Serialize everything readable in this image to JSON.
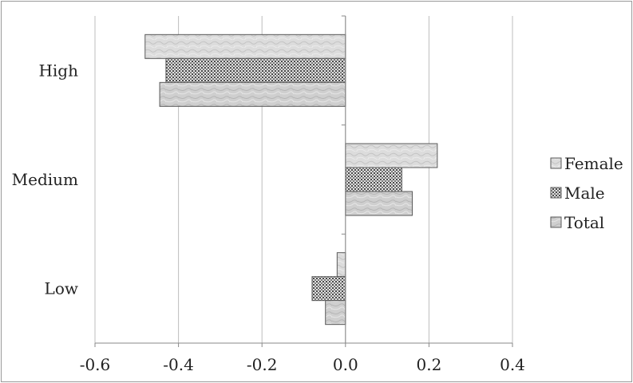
{
  "chart_data": {
    "type": "bar",
    "orientation": "horizontal",
    "title": "",
    "xlabel": "",
    "ylabel": "",
    "categories": [
      "High",
      "Medium",
      "Low"
    ],
    "series": [
      {
        "name": "Female",
        "values": [
          -0.48,
          0.22,
          -0.02
        ],
        "color": "#d6d6d6",
        "pattern": "marble-light"
      },
      {
        "name": "Male",
        "values": [
          -0.43,
          0.135,
          -0.08
        ],
        "color": "#8e8e8e",
        "pattern": "crosshatch"
      },
      {
        "name": "Total",
        "values": [
          -0.445,
          0.16,
          -0.048
        ],
        "color": "#c9c9c9",
        "pattern": "marble"
      }
    ],
    "xlim": [
      -0.6,
      0.4
    ],
    "xticks": [
      "-0.6",
      "-0.4",
      "-0.2",
      "0.0",
      "0.2",
      "0.4"
    ],
    "grid": true,
    "legend_position": "right"
  }
}
